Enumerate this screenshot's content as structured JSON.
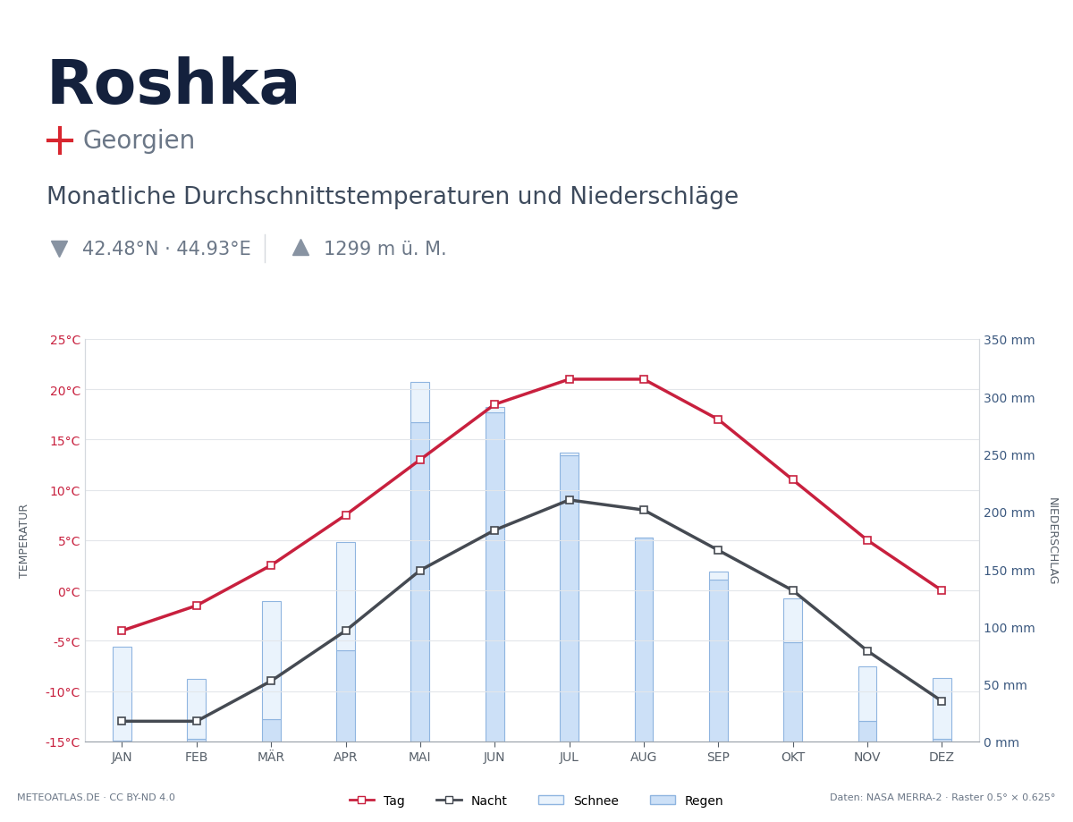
{
  "chart_data": {
    "type": "bar",
    "title": "Roshka",
    "subtitle": "Georgien",
    "description": "Monatliche Durchschnittstemperaturen und Niederschläge",
    "annotations": [
      "42.48°N · 44.93°E",
      "1299 m ü. M.",
      "METEOATLAS.DE · CC BY-ND 4.0",
      "Daten: NASA MERRA-2 · Raster 0.5° × 0.625°"
    ],
    "ylabel": "TEMPERATUR",
    "y2label": "NIEDERSCHLAG",
    "categories": [
      "JAN",
      "FEB",
      "MÄR",
      "APR",
      "MAI",
      "JUN",
      "JUL",
      "AUG",
      "SEP",
      "OKT",
      "NOV",
      "DEZ"
    ],
    "stacked": true,
    "grid": true,
    "legend": "lower center",
    "ylim": [
      -15,
      25
    ],
    "yticks": [
      {
        "value": -15,
        "label": "-15°C"
      },
      {
        "value": -10,
        "label": "-10°C"
      },
      {
        "value": -5,
        "label": "-5°C"
      },
      {
        "value": 0,
        "label": "0°C"
      },
      {
        "value": 5,
        "label": "5°C"
      },
      {
        "value": 10,
        "label": "10°C"
      },
      {
        "value": 15,
        "label": "15°C"
      },
      {
        "value": 20,
        "label": "20°C"
      },
      {
        "value": 25,
        "label": "25°C"
      }
    ],
    "y2lim": [
      0,
      350
    ],
    "y2ticks": [
      {
        "value": 0,
        "label": "0 mm"
      },
      {
        "value": 50,
        "label": "50 mm"
      },
      {
        "value": 100,
        "label": "100 mm"
      },
      {
        "value": 150,
        "label": "150 mm"
      },
      {
        "value": 200,
        "label": "200 mm"
      },
      {
        "value": 250,
        "label": "250 mm"
      },
      {
        "value": 300,
        "label": "300 mm"
      },
      {
        "value": 350,
        "label": "350 mm"
      }
    ],
    "series": [
      {
        "name": "Tag",
        "type": "line",
        "color": "#c8203e",
        "marker": "square",
        "line_style": "solid",
        "values": [
          -4,
          -1.5,
          2.5,
          7.5,
          13,
          18.5,
          21,
          21,
          17,
          11,
          5,
          0
        ]
      },
      {
        "name": "Nacht",
        "type": "line",
        "color": "#454a52",
        "marker": "square",
        "line_style": "solid",
        "values": [
          -13,
          -13,
          -9,
          -4,
          2,
          6,
          9,
          8,
          4,
          0,
          -6,
          -11
        ]
      },
      {
        "name": "Schnee",
        "type": "bar",
        "axis": "y2",
        "color": "#eaf3fc",
        "values": [
          81,
          52,
          103,
          94,
          35,
          5,
          2,
          0,
          7,
          38,
          47,
          53
        ]
      },
      {
        "name": "Regen",
        "type": "bar",
        "axis": "y2",
        "color": "#cce0f7",
        "values": [
          1,
          2,
          19,
          79,
          278,
          286,
          249,
          177,
          141,
          86,
          18,
          2
        ]
      }
    ]
  }
}
